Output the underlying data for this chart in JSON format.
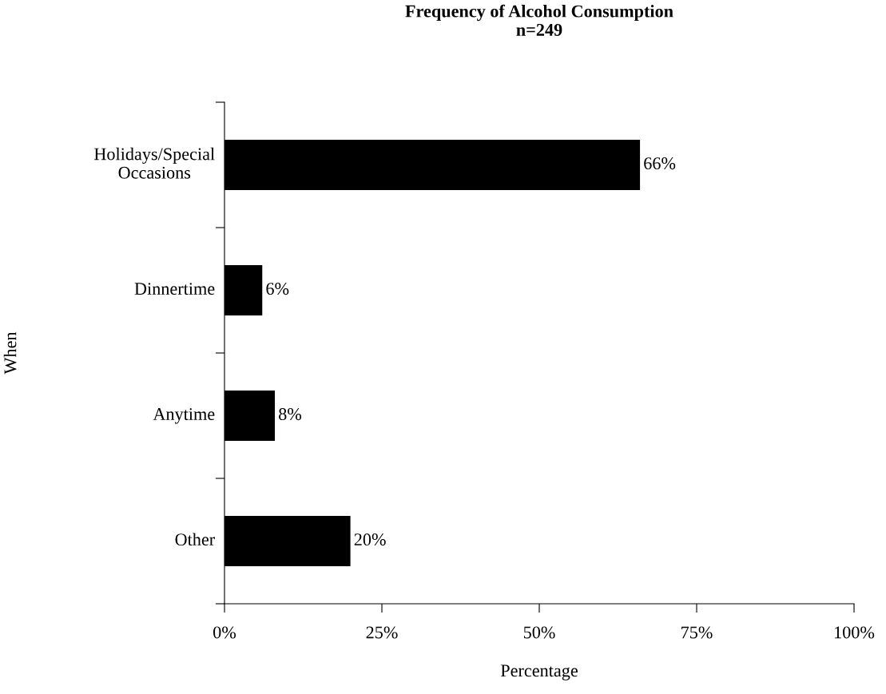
{
  "chart_data": {
    "type": "bar",
    "orientation": "horizontal",
    "title": "Frequency of Alcohol Consumption\nn=249",
    "xlabel": "Percentage",
    "ylabel": "When",
    "categories": [
      "Holidays/Special\nOccasions",
      "Dinnertime",
      "Anytime",
      "Other"
    ],
    "values": [
      66,
      6,
      8,
      20
    ],
    "value_labels": [
      "66%",
      "6%",
      "8%",
      "20%"
    ],
    "color": "#000000",
    "xlim": [
      0,
      100
    ],
    "xticks": [
      {
        "value": 0,
        "label": "0%"
      },
      {
        "value": 25,
        "label": "25%"
      },
      {
        "value": 50,
        "label": "50%"
      },
      {
        "value": 75,
        "label": "75%"
      },
      {
        "value": 100,
        "label": "100%"
      }
    ],
    "grid": false
  }
}
